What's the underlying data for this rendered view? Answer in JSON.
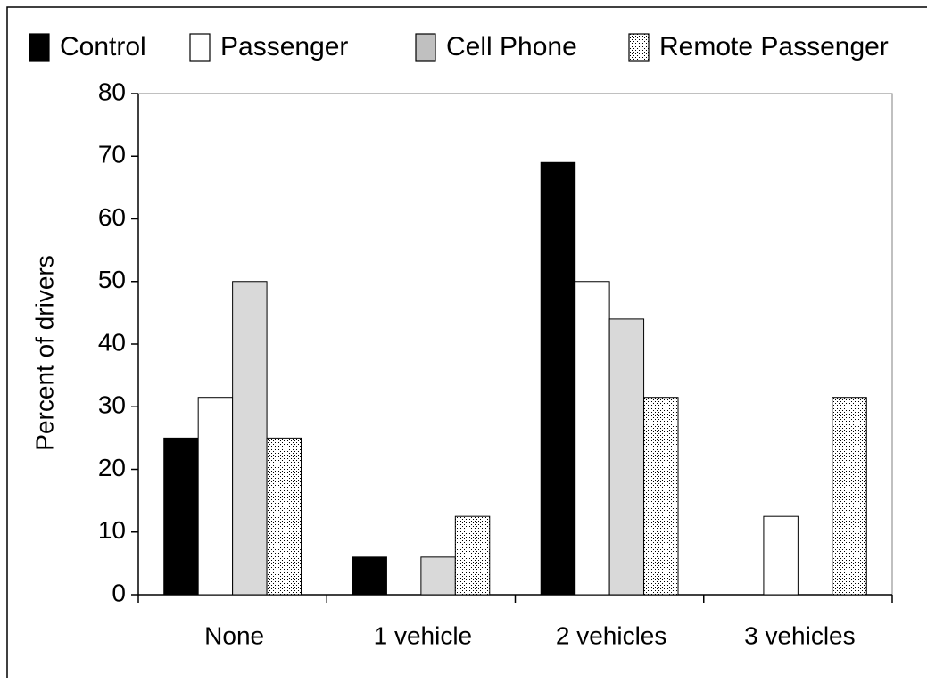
{
  "chart_data": {
    "type": "bar",
    "y_label": "Percent of drivers",
    "categories": [
      "None",
      "1 vehicle",
      "2 vehicles",
      "3 vehicles"
    ],
    "series": [
      {
        "name": "Control",
        "color": "#000000",
        "values": [
          25,
          6,
          69,
          0
        ]
      },
      {
        "name": "Passenger",
        "color": "#ffffff",
        "values": [
          31.5,
          0,
          50,
          12.5
        ]
      },
      {
        "name": "Cell Phone",
        "color": "#d9d9d9",
        "values": [
          50,
          6,
          44,
          0
        ]
      },
      {
        "name": "Remote Passenger",
        "color": "#ffffff",
        "pattern": "dots",
        "values": [
          25,
          12.5,
          31.5,
          31.5
        ]
      }
    ],
    "ylim": [
      0,
      80
    ],
    "yticks": [
      0,
      10,
      20,
      30,
      40,
      50,
      60,
      70,
      80
    ],
    "grid": false,
    "legend": "top"
  }
}
